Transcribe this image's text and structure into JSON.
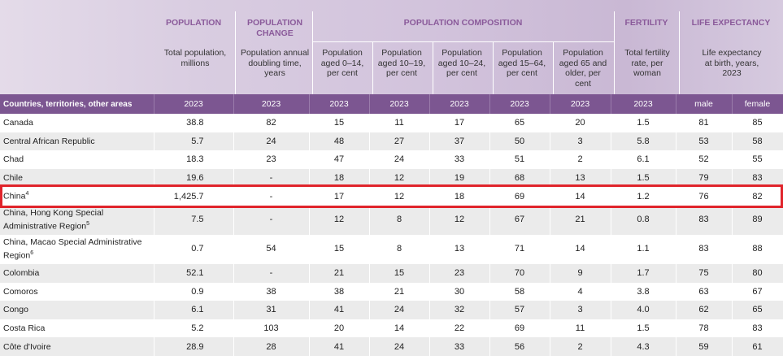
{
  "categories": {
    "population": "POPULATION",
    "population_change": "POPULATION CHANGE",
    "population_composition": "POPULATION COMPOSITION",
    "fertility": "FERTILITY",
    "life_expectancy": "LIFE EXPECTANCY"
  },
  "subheaders": {
    "total_population": "Total population, millions",
    "doubling_time": "Population annual doubling time, years",
    "aged_0_14": "Population aged 0–14, per cent",
    "aged_10_19": "Population aged 10–19, per cent",
    "aged_10_24": "Population aged 10–24, per cent",
    "aged_15_64": "Population aged 15–64, per cent",
    "aged_65": "Population aged 65 and older, per cent",
    "tfr": "Total fertility rate, per woman",
    "life_exp": "Life expectancy at birth, years, 2023"
  },
  "yearbar": {
    "label": "Countries, territories, other areas",
    "years": [
      "2023",
      "2023",
      "2023",
      "2023",
      "2023",
      "2023",
      "2023",
      "2023"
    ],
    "male": "male",
    "female": "female"
  },
  "rows": [
    {
      "name": "Canada",
      "sup": "",
      "v": [
        "38.8",
        "82",
        "15",
        "11",
        "17",
        "65",
        "20",
        "1.5",
        "81",
        "85"
      ]
    },
    {
      "name": "Central African Republic",
      "sup": "",
      "v": [
        "5.7",
        "24",
        "48",
        "27",
        "37",
        "50",
        "3",
        "5.8",
        "53",
        "58"
      ]
    },
    {
      "name": "Chad",
      "sup": "",
      "v": [
        "18.3",
        "23",
        "47",
        "24",
        "33",
        "51",
        "2",
        "6.1",
        "52",
        "55"
      ]
    },
    {
      "name": "Chile",
      "sup": "",
      "v": [
        "19.6",
        "-",
        "18",
        "12",
        "19",
        "68",
        "13",
        "1.5",
        "79",
        "83"
      ]
    },
    {
      "name": "China",
      "sup": "4",
      "v": [
        "1,425.7",
        "-",
        "17",
        "12",
        "18",
        "69",
        "14",
        "1.2",
        "76",
        "82"
      ]
    },
    {
      "name": "China, Hong Kong Special Administrative Region",
      "sup": "5",
      "v": [
        "7.5",
        "-",
        "12",
        "8",
        "12",
        "67",
        "21",
        "0.8",
        "83",
        "89"
      ]
    },
    {
      "name": "China, Macao Special Administrative Region",
      "sup": "6",
      "v": [
        "0.7",
        "54",
        "15",
        "8",
        "13",
        "71",
        "14",
        "1.1",
        "83",
        "88"
      ]
    },
    {
      "name": "Colombia",
      "sup": "",
      "v": [
        "52.1",
        "-",
        "21",
        "15",
        "23",
        "70",
        "9",
        "1.7",
        "75",
        "80"
      ]
    },
    {
      "name": "Comoros",
      "sup": "",
      "v": [
        "0.9",
        "38",
        "38",
        "21",
        "30",
        "58",
        "4",
        "3.8",
        "63",
        "67"
      ]
    },
    {
      "name": "Congo",
      "sup": "",
      "v": [
        "6.1",
        "31",
        "41",
        "24",
        "32",
        "57",
        "3",
        "4.0",
        "62",
        "65"
      ]
    },
    {
      "name": "Costa Rica",
      "sup": "",
      "v": [
        "5.2",
        "103",
        "20",
        "14",
        "22",
        "69",
        "11",
        "1.5",
        "78",
        "83"
      ]
    },
    {
      "name": "Côte d'Ivoire",
      "sup": "",
      "v": [
        "28.9",
        "28",
        "41",
        "24",
        "33",
        "56",
        "2",
        "4.3",
        "59",
        "61"
      ]
    }
  ],
  "highlight_color": "#e0242b",
  "header_accent": "#7c5691"
}
